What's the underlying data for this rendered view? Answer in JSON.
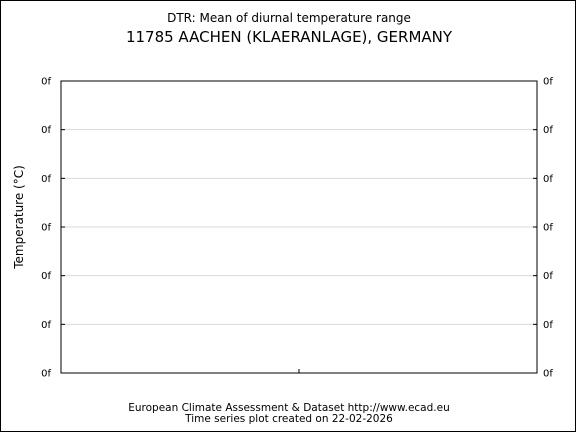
{
  "chart_data": {
    "type": "line",
    "title": "DTR: Mean of diurnal temperature range",
    "subtitle": "11785 AACHEN (KLAERANLAGE), GERMANY",
    "ylabel": "Temperature (°C)",
    "xlabel": "",
    "y_tick_labels": [
      "0f",
      "0f",
      "0f",
      "0f",
      "0f",
      "0f",
      "0f"
    ],
    "series": [],
    "grid": true,
    "legend": "none"
  },
  "footer": {
    "line1": "European Climate Assessment & Dataset  http://www.ecad.eu",
    "line2": "Time series plot created on 22-02-2026"
  }
}
